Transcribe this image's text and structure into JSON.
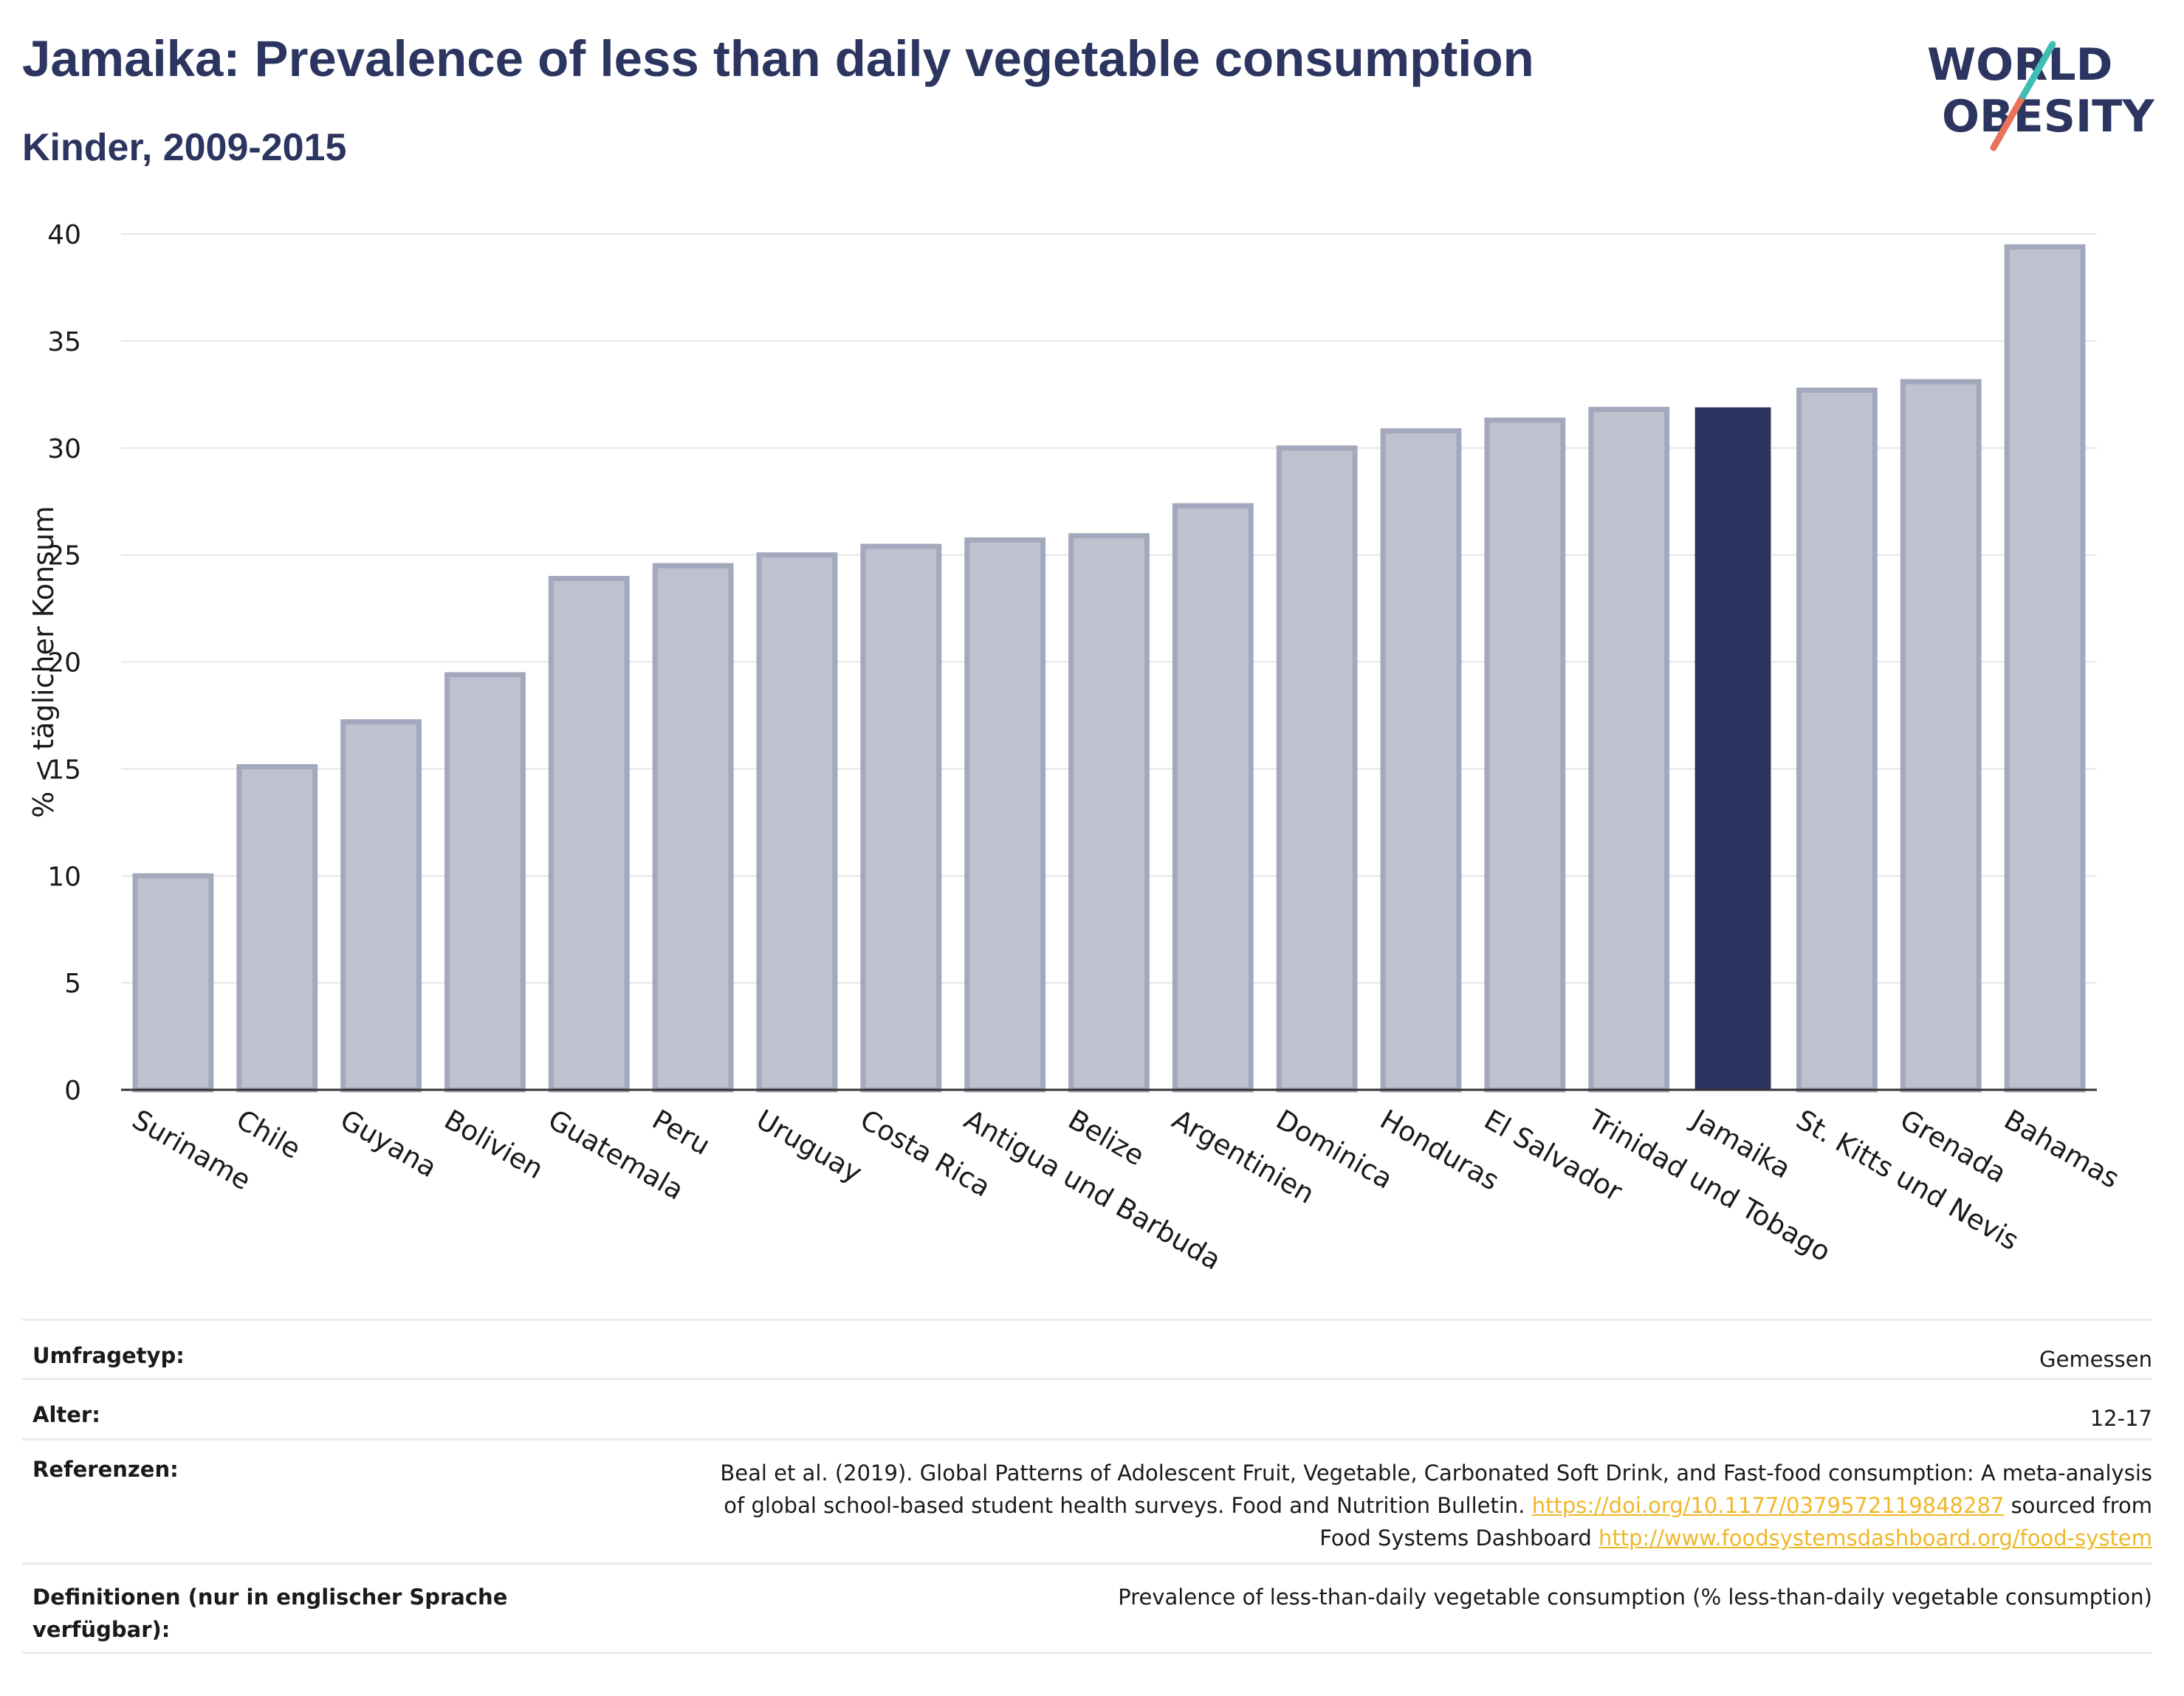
{
  "header": {
    "title": "Jamaika: Prevalence of less than daily vegetable consumption",
    "subtitle": "Kinder, 2009-2015",
    "logo_line1": "WORLD",
    "logo_line2": "OBESITY"
  },
  "chart_data": {
    "type": "bar",
    "title": "Jamaika: Prevalence of less than daily vegetable consumption",
    "subtitle": "Kinder, 2009-2015",
    "xlabel": "",
    "ylabel": "% < täglicher Konsum",
    "ylim": [
      0,
      40
    ],
    "yticks": [
      0,
      5,
      10,
      15,
      20,
      25,
      30,
      35,
      40
    ],
    "grid": true,
    "highlight": "Jamaika",
    "categories": [
      "Suriname",
      "Chile",
      "Guyana",
      "Bolivien",
      "Guatemala",
      "Peru",
      "Uruguay",
      "Costa Rica",
      "Antigua und Barbuda",
      "Belize",
      "Argentinien",
      "Dominica",
      "Honduras",
      "El Salvador",
      "Trinidad und Tobago",
      "Jamaika",
      "St. Kitts und Nevis",
      "Grenada",
      "Bahamas"
    ],
    "values": [
      10.0,
      15.1,
      17.2,
      19.4,
      23.9,
      24.5,
      25.0,
      25.4,
      25.7,
      25.9,
      27.3,
      30.0,
      30.8,
      31.3,
      31.8,
      31.9,
      32.7,
      33.1,
      39.4
    ],
    "colors": {
      "bar": "#bec2cf",
      "bar_border": "#a3a8bd",
      "highlight": "#2b3560",
      "axis": "#333333",
      "grid": "#e6e6e6"
    }
  },
  "footer": {
    "rows": [
      {
        "label": "Umfragetyp:",
        "value": "Gemessen"
      },
      {
        "label": "Alter:",
        "value": "12-17"
      },
      {
        "label": "Referenzen:",
        "value_line1": "Beal et al. (2019). Global Patterns of Adolescent Fruit, Vegetable, Carbonated Soft Drink, and Fast-food consumption: A meta-analysis",
        "value_line2_pre": "of global school-based student health surveys. Food and Nutrition Bulletin.",
        "link1": "https://doi.org/10.1177/0379572119848287",
        "value_line2_post": "sourced from",
        "value_line3_pre": "Food Systems Dashboard",
        "link2": "http://www.foodsystemsdashboard.org/food-system"
      },
      {
        "label": "Definitionen (nur in englischer Sprache verfügbar):",
        "value": "Prevalence of less-than-daily vegetable consumption (% less-than-daily vegetable consumption)"
      }
    ]
  }
}
